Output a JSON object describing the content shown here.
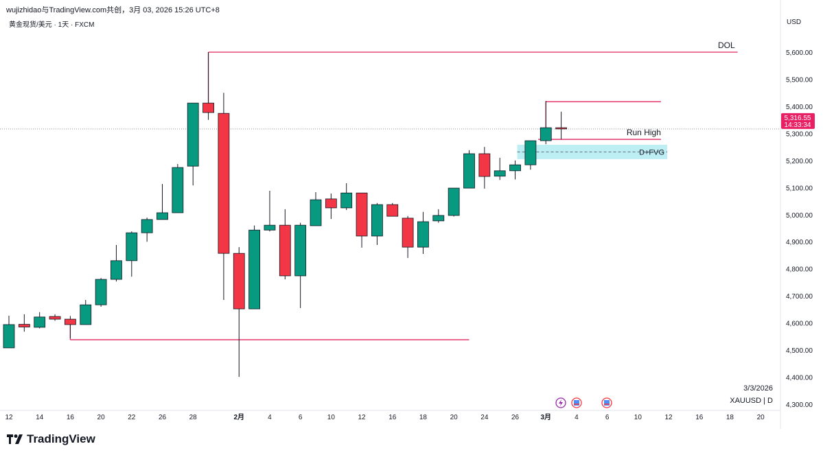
{
  "header": {
    "attribution": "wujizhidao与TradingView.com共创，3月 03, 2026 15:26 UTC+8",
    "symbol_line": "黄金现货/美元 · 1天 · FXCM",
    "currency": "USD"
  },
  "price_label": {
    "price": "5,316.55",
    "countdown": "14:33:34"
  },
  "stamp": {
    "date": "3/3/2026",
    "ticker": "XAUUSD | D"
  },
  "logo_text": "TradingView",
  "colors": {
    "up": "#089981",
    "down": "#f23645",
    "line": "#e0245e",
    "fvg": "#b2ebf2",
    "price_tag": "#e91e63"
  },
  "chart_data": {
    "type": "candlestick",
    "ylim": [
      4260,
      5680
    ],
    "y_ticks": [
      "4,300.00",
      "4,400.00",
      "4,500.00",
      "4,600.00",
      "4,700.00",
      "4,800.00",
      "4,900.00",
      "5,000.00",
      "5,100.00",
      "5,200.00",
      "5,300.00",
      "5,400.00",
      "5,500.00",
      "5,600.00"
    ],
    "y_tick_values": [
      4300,
      4400,
      4500,
      4600,
      4700,
      4800,
      4900,
      5000,
      5100,
      5200,
      5300,
      5400,
      5500,
      5600
    ],
    "x_ticks": [
      {
        "i": 0,
        "label": "12"
      },
      {
        "i": 2,
        "label": "14"
      },
      {
        "i": 4,
        "label": "16"
      },
      {
        "i": 6,
        "label": "20"
      },
      {
        "i": 8,
        "label": "22"
      },
      {
        "i": 10,
        "label": "26"
      },
      {
        "i": 12,
        "label": "28"
      },
      {
        "i": 15,
        "label": "2月",
        "bold": true
      },
      {
        "i": 17,
        "label": "4"
      },
      {
        "i": 19,
        "label": "6"
      },
      {
        "i": 21,
        "label": "10"
      },
      {
        "i": 23,
        "label": "12"
      },
      {
        "i": 25,
        "label": "16"
      },
      {
        "i": 27,
        "label": "18"
      },
      {
        "i": 29,
        "label": "20"
      },
      {
        "i": 31,
        "label": "24"
      },
      {
        "i": 33,
        "label": "26"
      },
      {
        "i": 35,
        "label": "3月",
        "bold": true
      },
      {
        "i": 37,
        "label": "4"
      },
      {
        "i": 39,
        "label": "6"
      },
      {
        "i": 41,
        "label": "10"
      },
      {
        "i": 43,
        "label": "12"
      },
      {
        "i": 45,
        "label": "16"
      },
      {
        "i": 47,
        "label": "18"
      },
      {
        "i": 49,
        "label": "20"
      }
    ],
    "ohlc": [
      [
        4508,
        4627,
        4508,
        4594
      ],
      [
        4595,
        4632,
        4568,
        4585
      ],
      [
        4584,
        4640,
        4580,
        4622
      ],
      [
        4624,
        4632,
        4608,
        4614
      ],
      [
        4614,
        4626,
        4543,
        4594
      ],
      [
        4594,
        4685,
        4594,
        4667
      ],
      [
        4667,
        4766,
        4660,
        4761
      ],
      [
        4761,
        4888,
        4753,
        4830
      ],
      [
        4830,
        4938,
        4771,
        4933
      ],
      [
        4933,
        4989,
        4900,
        4982
      ],
      [
        4982,
        5113,
        4982,
        5007
      ],
      [
        5007,
        5187,
        5007,
        5174
      ],
      [
        5179,
        5412,
        5108,
        5412
      ],
      [
        5412,
        5600,
        5350,
        5377
      ],
      [
        5374,
        5450,
        4685,
        4857
      ],
      [
        4857,
        4880,
        4401,
        4652
      ],
      [
        4652,
        4960,
        4652,
        4943
      ],
      [
        4943,
        5088,
        4938,
        4961
      ],
      [
        4961,
        5020,
        4761,
        4774
      ],
      [
        4774,
        4970,
        4655,
        4961
      ],
      [
        4959,
        5083,
        4959,
        5055
      ],
      [
        5058,
        5078,
        4984,
        5025
      ],
      [
        5025,
        5116,
        5017,
        5080
      ],
      [
        5080,
        5080,
        4878,
        4921
      ],
      [
        4921,
        5043,
        4888,
        5037
      ],
      [
        5037,
        5043,
        4994,
        4994
      ],
      [
        4987,
        4995,
        4840,
        4880
      ],
      [
        4880,
        5010,
        4855,
        4974
      ],
      [
        4977,
        5020,
        4970,
        4997
      ],
      [
        4997,
        5098,
        4993,
        5098
      ],
      [
        5098,
        5238,
        5098,
        5225
      ],
      [
        5225,
        5250,
        5096,
        5141
      ],
      [
        5142,
        5210,
        5128,
        5162
      ],
      [
        5162,
        5200,
        5130,
        5184
      ],
      [
        5184,
        5273,
        5166,
        5273
      ],
      [
        5273,
        5420,
        5260,
        5321
      ],
      [
        5321,
        5380,
        5278,
        5316.55
      ]
    ],
    "current_price": 5316.55,
    "annotations": [
      {
        "label": "DOL",
        "price": 5600,
        "from_i": 13,
        "to_i": 47.5
      },
      {
        "label": "Run High",
        "price": 5278,
        "from_i": 34.5,
        "to_i": 42.5
      },
      {
        "label": "",
        "price": 5417,
        "from_i": 35,
        "to_i": 42.5
      },
      {
        "label": "",
        "price": 4538,
        "from_i": 4,
        "to_i": 30
      },
      {
        "label": "D+FVG",
        "price_top": 5258,
        "price_bottom": 5205,
        "from_i": 33,
        "to_i": 43
      }
    ]
  }
}
